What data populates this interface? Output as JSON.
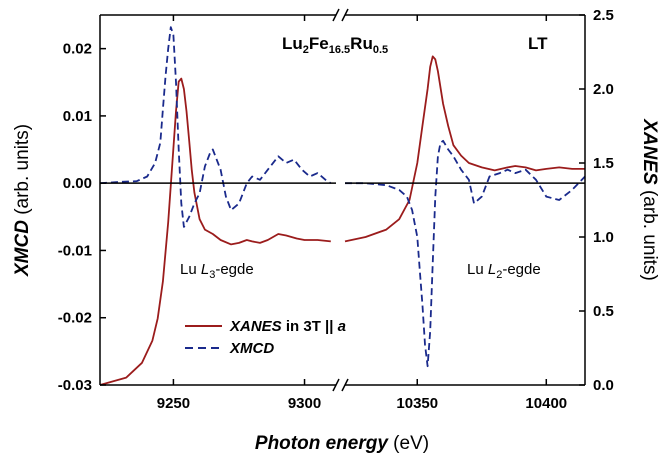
{
  "chart_data": {
    "type": "line",
    "title": "",
    "compound": {
      "main": "Lu",
      "sub1": "2",
      "mid": "Fe",
      "sub2": "16.5",
      "mid2": "Ru",
      "sub3": "0.5"
    },
    "condition_label": "LT",
    "xlabel": {
      "italic": "Photon energy",
      "normal": " (eV)"
    },
    "ylabel_left": {
      "italic": "XMCD",
      "normal": " (arb. units)"
    },
    "ylabel_right": {
      "italic": "XANES",
      "normal": " (arb. units)"
    },
    "x_broken": true,
    "x_segments": [
      {
        "range": [
          9222,
          9312
        ]
      },
      {
        "range": [
          10322,
          10415
        ]
      }
    ],
    "ylim_left": [
      -0.03,
      0.025
    ],
    "ylim_right": [
      0.0,
      2.5
    ],
    "left_ticks": [
      "-0.03",
      "-0.02",
      "-0.01",
      "0.00",
      "0.01",
      "0.02"
    ],
    "left_tick_values": [
      -0.03,
      -0.02,
      -0.01,
      0.0,
      0.01,
      0.02
    ],
    "right_ticks": [
      "0.0",
      "0.5",
      "1.0",
      "1.5",
      "2.0",
      "2.5"
    ],
    "right_tick_values": [
      0.0,
      0.5,
      1.0,
      1.5,
      2.0,
      2.5
    ],
    "x_ticks": [
      {
        "label": "9250",
        "value": 9250,
        "segment": 0
      },
      {
        "label": "9300",
        "value": 9300,
        "segment": 0
      },
      {
        "label": "10350",
        "value": 10350,
        "segment": 1
      },
      {
        "label": "10400",
        "value": 10400,
        "segment": 1
      }
    ],
    "zero_line": true,
    "edge_labels": [
      {
        "prefix": "Lu ",
        "italic": "L",
        "sub": "3",
        "suffix": "-egde"
      },
      {
        "prefix": "Lu ",
        "italic": "L",
        "sub": "2",
        "suffix": "-egde"
      }
    ],
    "legend": [
      {
        "italic": "XANES",
        "normal": " in 3T || ",
        "italic2": "a",
        "style": "solid",
        "color": "#9b1c1c"
      },
      {
        "italic": "XMCD",
        "normal": "",
        "italic2": "",
        "style": "dashed",
        "color": "#1a2a8c"
      }
    ],
    "series": [
      {
        "name": "XANES in 3T || a",
        "axis": "right",
        "color": "#9b1c1c",
        "style": "solid",
        "segments": [
          {
            "x": [
              9222,
              9232,
              9238,
              9242,
              9244,
              9246,
              9248,
              9250,
              9251,
              9252,
              9253,
              9254,
              9255,
              9256,
              9257,
              9258,
              9260,
              9262,
              9265,
              9268,
              9272,
              9275,
              9278,
              9280,
              9283,
              9286,
              9290,
              9293,
              9297,
              9300,
              9305,
              9310
            ],
            "y": [
              0.0,
              0.05,
              0.15,
              0.3,
              0.45,
              0.7,
              1.1,
              1.6,
              1.85,
              2.05,
              2.07,
              2.0,
              1.85,
              1.65,
              1.45,
              1.3,
              1.12,
              1.05,
              1.02,
              0.98,
              0.95,
              0.96,
              0.98,
              0.97,
              0.96,
              0.98,
              1.02,
              1.01,
              0.99,
              0.98,
              0.98,
              0.97
            ]
          },
          {
            "x": [
              10322,
              10330,
              10338,
              10343,
              10347,
              10350,
              10352,
              10354,
              10355,
              10356,
              10357,
              10358,
              10360,
              10362,
              10364,
              10367,
              10370,
              10375,
              10380,
              10385,
              10388,
              10392,
              10396,
              10400,
              10405,
              10410,
              10415
            ],
            "y": [
              0.97,
              1.0,
              1.05,
              1.12,
              1.25,
              1.5,
              1.75,
              2.0,
              2.15,
              2.22,
              2.2,
              2.12,
              1.9,
              1.75,
              1.62,
              1.55,
              1.5,
              1.47,
              1.45,
              1.47,
              1.48,
              1.47,
              1.45,
              1.46,
              1.47,
              1.46,
              1.46
            ]
          }
        ]
      },
      {
        "name": "XMCD",
        "axis": "left",
        "color": "#1a2a8c",
        "style": "dashed",
        "segments": [
          {
            "x": [
              9222,
              9230,
              9236,
              9240,
              9243,
              9245,
              9246,
              9247,
              9248,
              9249,
              9250,
              9251,
              9252,
              9253,
              9254,
              9256,
              9258,
              9260,
              9262,
              9264,
              9265,
              9266,
              9268,
              9270,
              9272,
              9275,
              9278,
              9280,
              9283,
              9286,
              9290,
              9293,
              9296,
              9299,
              9302,
              9305,
              9308,
              9310
            ],
            "y": [
              0.0,
              0.0002,
              0.0003,
              0.001,
              0.003,
              0.006,
              0.011,
              0.016,
              0.02,
              0.0232,
              0.022,
              0.015,
              0.005,
              -0.003,
              -0.0065,
              -0.005,
              -0.003,
              -0.0015,
              0.0025,
              0.0045,
              0.005,
              0.004,
              0.002,
              -0.002,
              -0.004,
              -0.003,
              0.0,
              0.001,
              0.0005,
              0.002,
              0.004,
              0.003,
              0.0035,
              0.002,
              0.001,
              0.0015,
              0.0005,
              0.0
            ]
          },
          {
            "x": [
              10322,
              10330,
              10338,
              10343,
              10346,
              10348,
              10350,
              10351,
              10352,
              10353,
              10354,
              10355,
              10356,
              10357,
              10358,
              10359,
              10360,
              10362,
              10364,
              10367,
              10370,
              10372,
              10375,
              10378,
              10382,
              10385,
              10388,
              10392,
              10396,
              10400,
              10405,
              10410,
              10415
            ],
            "y": [
              0.0,
              0.0,
              -0.0003,
              -0.001,
              -0.002,
              -0.004,
              -0.008,
              -0.013,
              -0.018,
              -0.024,
              -0.0272,
              -0.022,
              -0.012,
              -0.002,
              0.004,
              0.006,
              0.0063,
              0.005,
              0.004,
              0.002,
              0.0005,
              -0.003,
              -0.002,
              0.001,
              0.0015,
              0.002,
              0.0015,
              0.002,
              0.0005,
              -0.002,
              -0.0025,
              -0.001,
              0.001
            ]
          }
        ]
      }
    ]
  }
}
